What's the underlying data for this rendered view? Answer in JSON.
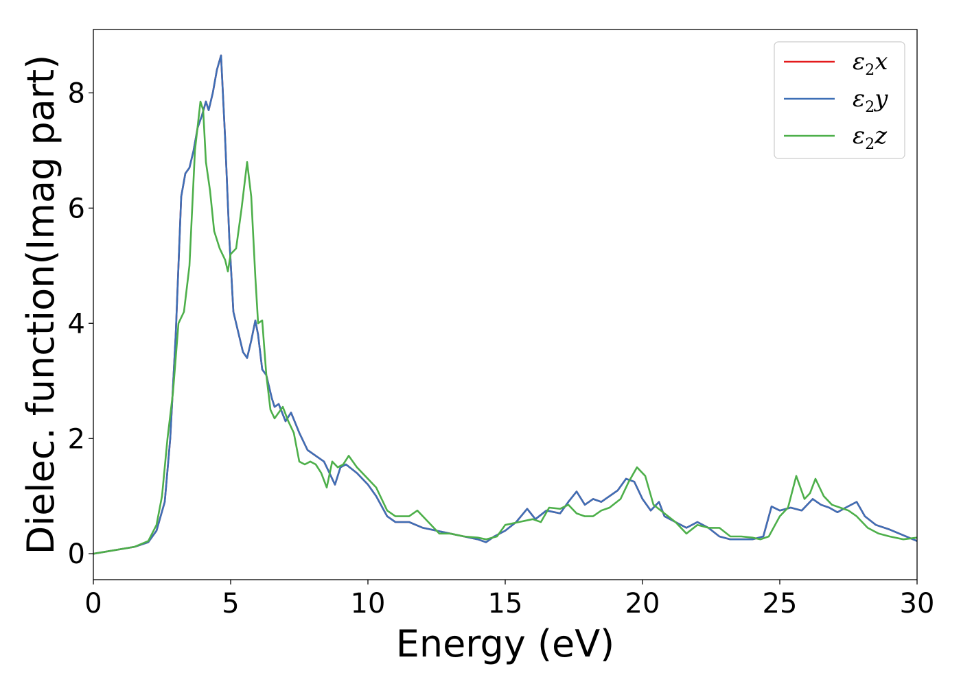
{
  "chart_data": {
    "type": "line",
    "title": "",
    "xlabel": "Energy (eV)",
    "ylabel": "Dielec. function(Imag part)",
    "xlim": [
      0,
      30
    ],
    "ylim": [
      -0.45,
      9.1
    ],
    "xticks": [
      0,
      5,
      10,
      15,
      20,
      25,
      30
    ],
    "yticks": [
      0,
      2,
      4,
      6,
      8
    ],
    "xtick_labels": [
      "0",
      "5",
      "10",
      "15",
      "20",
      "25",
      "30"
    ],
    "ytick_labels": [
      "0",
      "2",
      "4",
      "6",
      "8"
    ],
    "grid": false,
    "legend_position": "top-right",
    "series": [
      {
        "name": "ε2x",
        "label_main": "ε",
        "label_sub": "2",
        "label_tail": "x",
        "color": "#e41a1c",
        "x": [
          0,
          1,
          1.5,
          2,
          2.3,
          2.6,
          2.8,
          3.0,
          3.2,
          3.35,
          3.5,
          3.65,
          3.8,
          3.95,
          4.1,
          4.2,
          4.35,
          4.5,
          4.65,
          4.8,
          4.95,
          5.1,
          5.25,
          5.45,
          5.6,
          5.75,
          5.9,
          6.0,
          6.15,
          6.3,
          6.5,
          6.6,
          6.75,
          7.0,
          7.2,
          7.5,
          7.8,
          8.1,
          8.4,
          8.6,
          8.8,
          9.0,
          9.2,
          9.6,
          10.0,
          10.3,
          10.7,
          11.0,
          11.5,
          12.0,
          12.5,
          13.0,
          13.5,
          14.0,
          14.3,
          14.6,
          15.0,
          15.4,
          15.8,
          16.1,
          16.5,
          17.0,
          17.3,
          17.6,
          17.9,
          18.2,
          18.5,
          18.8,
          19.1,
          19.4,
          19.7,
          20.0,
          20.3,
          20.6,
          20.8,
          21.2,
          21.6,
          22.0,
          22.4,
          22.8,
          23.2,
          23.6,
          24.0,
          24.4,
          24.7,
          25.0,
          25.4,
          25.8,
          26.2,
          26.5,
          26.8,
          27.1,
          27.4,
          27.8,
          28.1,
          28.5,
          29.0,
          29.5,
          30.0
        ],
        "y": [
          0,
          0.08,
          0.12,
          0.2,
          0.4,
          0.9,
          2.0,
          3.8,
          6.2,
          6.6,
          6.7,
          7.0,
          7.4,
          7.6,
          7.85,
          7.7,
          8.0,
          8.4,
          8.65,
          7.2,
          5.5,
          4.2,
          3.9,
          3.5,
          3.4,
          3.7,
          4.05,
          3.8,
          3.2,
          3.1,
          2.7,
          2.55,
          2.6,
          2.3,
          2.45,
          2.1,
          1.8,
          1.7,
          1.6,
          1.4,
          1.2,
          1.5,
          1.55,
          1.4,
          1.2,
          1.0,
          0.65,
          0.55,
          0.55,
          0.45,
          0.4,
          0.35,
          0.3,
          0.25,
          0.2,
          0.3,
          0.4,
          0.55,
          0.78,
          0.6,
          0.75,
          0.7,
          0.9,
          1.08,
          0.85,
          0.95,
          0.9,
          1.0,
          1.1,
          1.3,
          1.25,
          0.95,
          0.75,
          0.9,
          0.65,
          0.55,
          0.45,
          0.55,
          0.45,
          0.3,
          0.25,
          0.25,
          0.25,
          0.3,
          0.82,
          0.75,
          0.8,
          0.75,
          0.95,
          0.85,
          0.8,
          0.72,
          0.8,
          0.9,
          0.65,
          0.5,
          0.42,
          0.32,
          0.22
        ]
      },
      {
        "name": "ε2y",
        "label_main": "ε",
        "label_sub": "2",
        "label_tail": "y",
        "color": "#3d6fb6",
        "x": [
          0,
          1,
          1.5,
          2,
          2.3,
          2.6,
          2.8,
          3.0,
          3.2,
          3.35,
          3.5,
          3.65,
          3.8,
          3.95,
          4.1,
          4.2,
          4.35,
          4.5,
          4.65,
          4.8,
          4.95,
          5.1,
          5.25,
          5.45,
          5.6,
          5.75,
          5.9,
          6.0,
          6.15,
          6.3,
          6.5,
          6.6,
          6.75,
          7.0,
          7.2,
          7.5,
          7.8,
          8.1,
          8.4,
          8.6,
          8.8,
          9.0,
          9.2,
          9.6,
          10.0,
          10.3,
          10.7,
          11.0,
          11.5,
          12.0,
          12.5,
          13.0,
          13.5,
          14.0,
          14.3,
          14.6,
          15.0,
          15.4,
          15.8,
          16.1,
          16.5,
          17.0,
          17.3,
          17.6,
          17.9,
          18.2,
          18.5,
          18.8,
          19.1,
          19.4,
          19.7,
          20.0,
          20.3,
          20.6,
          20.8,
          21.2,
          21.6,
          22.0,
          22.4,
          22.8,
          23.2,
          23.6,
          24.0,
          24.4,
          24.7,
          25.0,
          25.4,
          25.8,
          26.2,
          26.5,
          26.8,
          27.1,
          27.4,
          27.8,
          28.1,
          28.5,
          29.0,
          29.5,
          30.0
        ],
        "y": [
          0,
          0.08,
          0.12,
          0.2,
          0.4,
          0.9,
          2.0,
          3.8,
          6.2,
          6.6,
          6.7,
          7.0,
          7.4,
          7.6,
          7.85,
          7.7,
          8.0,
          8.4,
          8.65,
          7.2,
          5.5,
          4.2,
          3.9,
          3.5,
          3.4,
          3.7,
          4.05,
          3.8,
          3.2,
          3.1,
          2.7,
          2.55,
          2.6,
          2.3,
          2.45,
          2.1,
          1.8,
          1.7,
          1.6,
          1.4,
          1.2,
          1.5,
          1.55,
          1.4,
          1.2,
          1.0,
          0.65,
          0.55,
          0.55,
          0.45,
          0.4,
          0.35,
          0.3,
          0.25,
          0.2,
          0.3,
          0.4,
          0.55,
          0.78,
          0.6,
          0.75,
          0.7,
          0.9,
          1.08,
          0.85,
          0.95,
          0.9,
          1.0,
          1.1,
          1.3,
          1.25,
          0.95,
          0.75,
          0.9,
          0.65,
          0.55,
          0.45,
          0.55,
          0.45,
          0.3,
          0.25,
          0.25,
          0.25,
          0.3,
          0.82,
          0.75,
          0.8,
          0.75,
          0.95,
          0.85,
          0.8,
          0.72,
          0.8,
          0.9,
          0.65,
          0.5,
          0.42,
          0.32,
          0.22
        ]
      },
      {
        "name": "ε2z",
        "label_main": "ε",
        "label_sub": "2",
        "label_tail": "z",
        "color": "#4daf4a",
        "x": [
          0,
          1,
          1.5,
          2,
          2.3,
          2.5,
          2.7,
          2.9,
          3.1,
          3.3,
          3.5,
          3.7,
          3.9,
          4.0,
          4.1,
          4.25,
          4.4,
          4.6,
          4.8,
          4.9,
          5.0,
          5.2,
          5.4,
          5.6,
          5.75,
          5.9,
          6.0,
          6.15,
          6.3,
          6.45,
          6.6,
          6.75,
          6.9,
          7.1,
          7.3,
          7.5,
          7.7,
          7.9,
          8.1,
          8.3,
          8.5,
          8.7,
          8.9,
          9.1,
          9.3,
          9.6,
          9.9,
          10.3,
          10.7,
          11.0,
          11.5,
          11.8,
          12.2,
          12.6,
          13.0,
          13.5,
          14.0,
          14.3,
          14.7,
          15.0,
          15.5,
          16.0,
          16.3,
          16.6,
          17.0,
          17.3,
          17.6,
          17.9,
          18.2,
          18.5,
          18.8,
          19.2,
          19.5,
          19.8,
          20.1,
          20.4,
          20.8,
          21.2,
          21.6,
          22.0,
          22.4,
          22.8,
          23.2,
          23.6,
          24.0,
          24.3,
          24.6,
          25.0,
          25.3,
          25.6,
          25.9,
          26.1,
          26.3,
          26.6,
          26.9,
          27.2,
          27.5,
          27.8,
          28.2,
          28.6,
          29.0,
          29.5,
          30.0
        ],
        "y": [
          0,
          0.08,
          0.12,
          0.22,
          0.5,
          1.0,
          2.0,
          2.8,
          4.0,
          4.2,
          5.0,
          7.0,
          7.85,
          7.7,
          6.8,
          6.3,
          5.6,
          5.3,
          5.1,
          4.9,
          5.2,
          5.3,
          6.0,
          6.8,
          6.2,
          4.8,
          4.0,
          4.05,
          3.1,
          2.5,
          2.35,
          2.45,
          2.55,
          2.3,
          2.1,
          1.6,
          1.55,
          1.6,
          1.55,
          1.4,
          1.15,
          1.6,
          1.5,
          1.55,
          1.7,
          1.5,
          1.35,
          1.15,
          0.75,
          0.65,
          0.65,
          0.75,
          0.55,
          0.35,
          0.35,
          0.3,
          0.28,
          0.25,
          0.3,
          0.5,
          0.55,
          0.6,
          0.55,
          0.8,
          0.78,
          0.85,
          0.7,
          0.65,
          0.65,
          0.75,
          0.8,
          0.95,
          1.25,
          1.5,
          1.35,
          0.85,
          0.7,
          0.55,
          0.35,
          0.5,
          0.45,
          0.45,
          0.3,
          0.3,
          0.28,
          0.25,
          0.3,
          0.65,
          0.8,
          1.35,
          0.95,
          1.05,
          1.3,
          1.0,
          0.85,
          0.8,
          0.75,
          0.65,
          0.45,
          0.35,
          0.3,
          0.25,
          0.28
        ]
      }
    ]
  }
}
